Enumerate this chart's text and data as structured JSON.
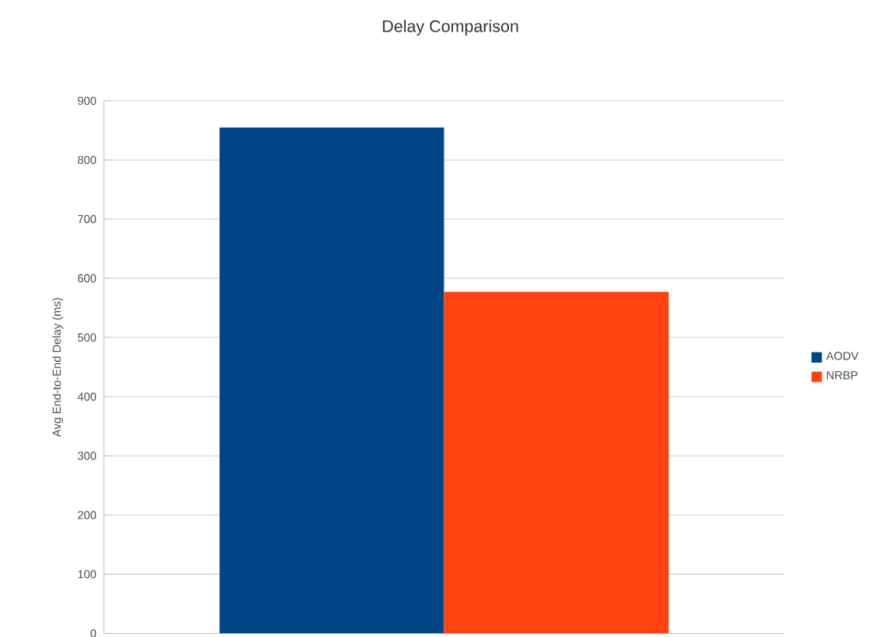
{
  "chart_data": {
    "type": "bar",
    "title": "Delay Comparison",
    "ylabel": "Avg End-to-End Delay (ms)",
    "categories": [
      null
    ],
    "series": [
      {
        "name": "AODV",
        "color": "#004586",
        "values": [
          855
        ]
      },
      {
        "name": "NRBP",
        "color": "#ff420e",
        "values": [
          577
        ]
      }
    ],
    "ylim": [
      0,
      900
    ],
    "yticks": [
      0,
      100,
      200,
      300,
      400,
      500,
      600,
      700,
      800,
      900
    ],
    "grid": "y",
    "legend": "right"
  }
}
